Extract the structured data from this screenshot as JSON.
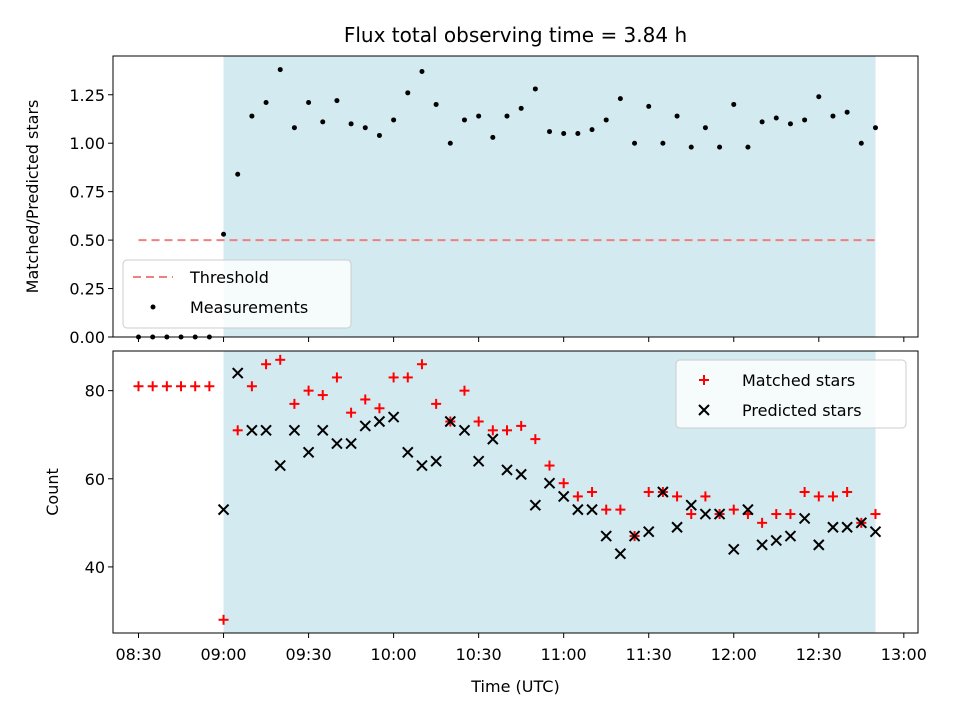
{
  "chart_data": [
    {
      "type": "scatter",
      "title": "Flux total observing time = 3.84 h",
      "ylabel": "Matched/Predicted stars",
      "xlabel": "",
      "xlim": [
        "08:21",
        "13:05"
      ],
      "ylim": [
        0,
        1.45
      ],
      "yticks": [
        "0.00",
        "0.25",
        "0.50",
        "0.75",
        "1.00",
        "1.25"
      ],
      "shaded_interval": {
        "start": "09:00",
        "end": "12:50",
        "color": "#d3eaf1"
      },
      "threshold": {
        "name": "Threshold",
        "value": 0.5,
        "x_start": "08:30",
        "x_end": "12:50",
        "color": "#f08080"
      },
      "legend_position": "lower-left",
      "series": [
        {
          "name": "Measurements",
          "color": "#000000",
          "x": [
            "08:30",
            "08:35",
            "08:40",
            "08:45",
            "08:50",
            "08:55",
            "09:00",
            "09:05",
            "09:10",
            "09:15",
            "09:20",
            "09:25",
            "09:30",
            "09:35",
            "09:40",
            "09:45",
            "09:50",
            "09:55",
            "10:00",
            "10:05",
            "10:10",
            "10:15",
            "10:20",
            "10:25",
            "10:30",
            "10:35",
            "10:40",
            "10:45",
            "10:50",
            "10:55",
            "11:00",
            "11:05",
            "11:10",
            "11:15",
            "11:20",
            "11:25",
            "11:30",
            "11:35",
            "11:40",
            "11:45",
            "11:50",
            "11:55",
            "12:00",
            "12:05",
            "12:10",
            "12:15",
            "12:20",
            "12:25",
            "12:30",
            "12:35",
            "12:40",
            "12:45",
            "12:50"
          ],
          "y": [
            0,
            0,
            0,
            0,
            0,
            0,
            0.53,
            0.84,
            1.14,
            1.21,
            1.38,
            1.08,
            1.21,
            1.11,
            1.22,
            1.1,
            1.08,
            1.04,
            1.12,
            1.26,
            1.37,
            1.2,
            1.0,
            1.12,
            1.14,
            1.03,
            1.14,
            1.18,
            1.28,
            1.06,
            1.05,
            1.05,
            1.07,
            1.12,
            1.23,
            1.0,
            1.19,
            1.0,
            1.14,
            0.98,
            1.08,
            0.98,
            1.2,
            0.98,
            1.11,
            1.13,
            1.1,
            1.12,
            1.24,
            1.14,
            1.16,
            1.0,
            1.08
          ]
        }
      ]
    },
    {
      "type": "scatter",
      "title": "",
      "ylabel": "Count",
      "xlabel": "Time (UTC)",
      "xlim": [
        "08:21",
        "13:05"
      ],
      "ylim": [
        25,
        89
      ],
      "yticks": [
        "40",
        "60",
        "80"
      ],
      "xticks": [
        "08:30",
        "09:00",
        "09:30",
        "10:00",
        "10:30",
        "11:00",
        "11:30",
        "12:00",
        "12:30",
        "13:00"
      ],
      "shaded_interval": {
        "start": "09:00",
        "end": "12:50",
        "color": "#d3eaf1"
      },
      "legend_position": "top-right",
      "series": [
        {
          "name": "Matched stars",
          "marker": "plus",
          "color": "#ff0000",
          "x": [
            "08:30",
            "08:35",
            "08:40",
            "08:45",
            "08:50",
            "08:55",
            "09:00",
            "09:05",
            "09:10",
            "09:15",
            "09:20",
            "09:25",
            "09:30",
            "09:35",
            "09:40",
            "09:45",
            "09:50",
            "09:55",
            "10:00",
            "10:05",
            "10:10",
            "10:15",
            "10:20",
            "10:25",
            "10:30",
            "10:35",
            "10:40",
            "10:45",
            "10:50",
            "10:55",
            "11:00",
            "11:05",
            "11:10",
            "11:15",
            "11:20",
            "11:25",
            "11:30",
            "11:35",
            "11:40",
            "11:45",
            "11:50",
            "11:55",
            "12:00",
            "12:05",
            "12:10",
            "12:15",
            "12:20",
            "12:25",
            "12:30",
            "12:35",
            "12:40",
            "12:45",
            "12:50"
          ],
          "y": [
            81,
            81,
            81,
            81,
            81,
            81,
            28,
            71,
            81,
            86,
            87,
            77,
            80,
            79,
            83,
            75,
            78,
            76,
            83,
            83,
            86,
            77,
            73,
            80,
            73,
            71,
            71,
            72,
            69,
            63,
            59,
            56,
            57,
            53,
            53,
            47,
            57,
            57,
            56,
            52,
            56,
            52,
            53,
            52,
            50,
            52,
            52,
            57,
            56,
            56,
            57,
            50,
            52
          ]
        },
        {
          "name": "Predicted stars",
          "marker": "x",
          "color": "#000000",
          "x": [
            "09:00",
            "09:05",
            "09:10",
            "09:15",
            "09:20",
            "09:25",
            "09:30",
            "09:35",
            "09:40",
            "09:45",
            "09:50",
            "09:55",
            "10:00",
            "10:05",
            "10:10",
            "10:15",
            "10:20",
            "10:25",
            "10:30",
            "10:35",
            "10:40",
            "10:45",
            "10:50",
            "10:55",
            "11:00",
            "11:05",
            "11:10",
            "11:15",
            "11:20",
            "11:25",
            "11:30",
            "11:35",
            "11:40",
            "11:45",
            "11:50",
            "11:55",
            "12:00",
            "12:05",
            "12:10",
            "12:15",
            "12:20",
            "12:25",
            "12:30",
            "12:35",
            "12:40",
            "12:45",
            "12:50"
          ],
          "y": [
            53,
            84,
            71,
            71,
            63,
            71,
            66,
            71,
            68,
            68,
            72,
            73,
            74,
            66,
            63,
            64,
            73,
            71,
            64,
            69,
            62,
            61,
            54,
            59,
            56,
            53,
            53,
            47,
            43,
            47,
            48,
            57,
            49,
            54,
            52,
            52,
            44,
            53,
            45,
            46,
            47,
            51,
            45,
            49,
            49,
            50,
            48
          ]
        }
      ]
    }
  ]
}
